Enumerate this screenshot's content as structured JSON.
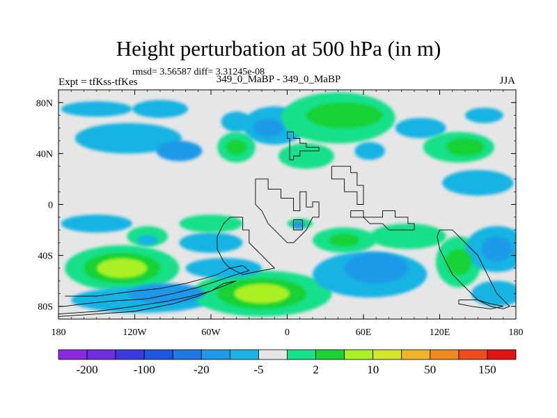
{
  "chart_data": {
    "type": "heatmap",
    "title": "Height perturbation at 500 hPa (in m)",
    "subtitle": "rmsd= 3.56587 diff= 3.31245e-08",
    "left_string": "Expt = tfKss-tfKes",
    "center_string": "349_0_MaBP - 349_0_MaBP",
    "right_string": "JJA",
    "xlim": [
      -180,
      180
    ],
    "ylim": [
      -90,
      90
    ],
    "x_ticks": [
      {
        "value": -180,
        "label": "180"
      },
      {
        "value": -120,
        "label": "120W"
      },
      {
        "value": -60,
        "label": "60W"
      },
      {
        "value": 0,
        "label": "0"
      },
      {
        "value": 60,
        "label": "60E"
      },
      {
        "value": 120,
        "label": "120E"
      },
      {
        "value": 180,
        "label": "180"
      }
    ],
    "y_ticks": [
      {
        "value": 80,
        "label": "80N"
      },
      {
        "value": 40,
        "label": "40N"
      },
      {
        "value": 0,
        "label": "0"
      },
      {
        "value": -40,
        "label": "40S"
      },
      {
        "value": -80,
        "label": "80S"
      }
    ],
    "colorbar": {
      "colors": [
        "#8a2be2",
        "#6f2ee0",
        "#3a3adf",
        "#1f57e0",
        "#1f78e6",
        "#1f9ae8",
        "#19b4e2",
        "#e6e6e6",
        "#19e08a",
        "#19d235",
        "#aaf024",
        "#d2e62a",
        "#f0b428",
        "#f08a1e",
        "#f04a1e",
        "#e01414"
      ],
      "labels": [
        {
          "boundary": 1,
          "label": "-200"
        },
        {
          "boundary": 3,
          "label": "-100"
        },
        {
          "boundary": 5,
          "label": "-20"
        },
        {
          "boundary": 7,
          "label": "-5"
        },
        {
          "boundary": 9,
          "label": "2"
        },
        {
          "boundary": 11,
          "label": "10"
        },
        {
          "boundary": 13,
          "label": "50"
        },
        {
          "boundary": 15,
          "label": "150"
        }
      ]
    },
    "field_regions": [
      {
        "lon": -150,
        "lat": 75,
        "rx": 28,
        "ry": 6,
        "level": 6
      },
      {
        "lon": -100,
        "lat": 75,
        "rx": 22,
        "ry": 7,
        "level": 6
      },
      {
        "lon": -125,
        "lat": 52,
        "rx": 42,
        "ry": 12,
        "level": 6
      },
      {
        "lon": -85,
        "lat": 42,
        "rx": 18,
        "ry": 8,
        "level": 5
      },
      {
        "lon": -40,
        "lat": 65,
        "rx": 12,
        "ry": 8,
        "level": 6
      },
      {
        "lon": -40,
        "lat": 45,
        "rx": 15,
        "ry": 12,
        "level": 8
      },
      {
        "lon": -40,
        "lat": 45,
        "rx": 8,
        "ry": 6,
        "level": 9
      },
      {
        "lon": -10,
        "lat": 62,
        "rx": 25,
        "ry": 15,
        "level": 6
      },
      {
        "lon": -15,
        "lat": 60,
        "rx": 12,
        "ry": 7,
        "level": 5
      },
      {
        "lon": 15,
        "lat": 38,
        "rx": 22,
        "ry": 10,
        "level": 8
      },
      {
        "lon": 40,
        "lat": 68,
        "rx": 45,
        "ry": 20,
        "level": 8
      },
      {
        "lon": 45,
        "lat": 70,
        "rx": 30,
        "ry": 10,
        "level": 9
      },
      {
        "lon": 65,
        "lat": 42,
        "rx": 12,
        "ry": 7,
        "level": 6
      },
      {
        "lon": 105,
        "lat": 60,
        "rx": 20,
        "ry": 8,
        "level": 6
      },
      {
        "lon": 135,
        "lat": 45,
        "rx": 28,
        "ry": 12,
        "level": 8
      },
      {
        "lon": 140,
        "lat": 45,
        "rx": 15,
        "ry": 7,
        "level": 9
      },
      {
        "lon": 150,
        "lat": 17,
        "rx": 28,
        "ry": 10,
        "level": 6
      },
      {
        "lon": 155,
        "lat": 70,
        "rx": 15,
        "ry": 6,
        "level": 6
      },
      {
        "lon": -150,
        "lat": -15,
        "rx": 28,
        "ry": 7,
        "level": 6
      },
      {
        "lon": -110,
        "lat": -25,
        "rx": 16,
        "ry": 8,
        "level": 8
      },
      {
        "lon": -110,
        "lat": -28,
        "rx": 8,
        "ry": 4,
        "level": 6
      },
      {
        "lon": -130,
        "lat": -50,
        "rx": 45,
        "ry": 18,
        "level": 8
      },
      {
        "lon": -130,
        "lat": -50,
        "rx": 30,
        "ry": 12,
        "level": 9
      },
      {
        "lon": -130,
        "lat": -50,
        "rx": 20,
        "ry": 8,
        "level": 10
      },
      {
        "lon": -60,
        "lat": -30,
        "rx": 25,
        "ry": 8,
        "level": 6
      },
      {
        "lon": -60,
        "lat": -15,
        "rx": 25,
        "ry": 7,
        "level": 8
      },
      {
        "lon": -115,
        "lat": -75,
        "rx": 55,
        "ry": 10,
        "level": 6
      },
      {
        "lon": -95,
        "lat": -70,
        "rx": 30,
        "ry": 8,
        "level": 5
      },
      {
        "lon": -20,
        "lat": -70,
        "rx": 55,
        "ry": 18,
        "level": 8
      },
      {
        "lon": -20,
        "lat": -70,
        "rx": 35,
        "ry": 12,
        "level": 9
      },
      {
        "lon": -20,
        "lat": -70,
        "rx": 22,
        "ry": 8,
        "level": 10
      },
      {
        "lon": -50,
        "lat": -50,
        "rx": 30,
        "ry": 8,
        "level": 6
      },
      {
        "lon": 10,
        "lat": -15,
        "rx": 10,
        "ry": 4,
        "level": 8
      },
      {
        "lon": 45,
        "lat": -28,
        "rx": 25,
        "ry": 10,
        "level": 8
      },
      {
        "lon": 45,
        "lat": -28,
        "rx": 12,
        "ry": 5,
        "level": 9
      },
      {
        "lon": 65,
        "lat": -55,
        "rx": 45,
        "ry": 18,
        "level": 6
      },
      {
        "lon": 70,
        "lat": -50,
        "rx": 25,
        "ry": 12,
        "level": 5
      },
      {
        "lon": 95,
        "lat": -25,
        "rx": 30,
        "ry": 10,
        "level": 8
      },
      {
        "lon": 135,
        "lat": -45,
        "rx": 18,
        "ry": 20,
        "level": 8
      },
      {
        "lon": 135,
        "lat": -45,
        "rx": 10,
        "ry": 10,
        "level": 9
      },
      {
        "lon": 165,
        "lat": -35,
        "rx": 25,
        "ry": 18,
        "level": 6
      },
      {
        "lon": 165,
        "lat": -35,
        "rx": 12,
        "ry": 10,
        "level": 5
      },
      {
        "lon": 165,
        "lat": -70,
        "rx": 20,
        "ry": 10,
        "level": 6
      },
      {
        "lon": 9,
        "lat": -16,
        "rx": 5,
        "ry": 3,
        "level": 5
      }
    ],
    "land_outlines": [
      [
        [
          0,
          57
        ],
        [
          5,
          57
        ],
        [
          5,
          52
        ],
        [
          10,
          52
        ],
        [
          10,
          48
        ],
        [
          15,
          48
        ],
        [
          15,
          45
        ],
        [
          25,
          45
        ],
        [
          25,
          42
        ],
        [
          10,
          42
        ],
        [
          10,
          38
        ],
        [
          5,
          38
        ],
        [
          5,
          35
        ],
        [
          2,
          35
        ],
        [
          2,
          52
        ],
        [
          0,
          52
        ],
        [
          0,
          57
        ]
      ],
      [
        [
          35,
          30
        ],
        [
          50,
          30
        ],
        [
          50,
          25
        ],
        [
          55,
          25
        ],
        [
          55,
          15
        ],
        [
          60,
          15
        ],
        [
          60,
          0
        ],
        [
          55,
          0
        ],
        [
          55,
          10
        ],
        [
          45,
          10
        ],
        [
          45,
          20
        ],
        [
          35,
          20
        ],
        [
          35,
          30
        ]
      ],
      [
        [
          -25,
          20
        ],
        [
          -15,
          20
        ],
        [
          -15,
          12
        ],
        [
          -5,
          12
        ],
        [
          -5,
          5
        ],
        [
          0,
          5
        ],
        [
          5,
          5
        ],
        [
          5,
          -5
        ],
        [
          10,
          -5
        ],
        [
          10,
          10
        ],
        [
          15,
          10
        ],
        [
          15,
          -2
        ],
        [
          20,
          -2
        ],
        [
          20,
          2
        ],
        [
          25,
          2
        ],
        [
          25,
          -10
        ],
        [
          20,
          -10
        ],
        [
          15,
          -20
        ],
        [
          10,
          -25
        ],
        [
          5,
          -30
        ],
        [
          0,
          -30
        ],
        [
          -5,
          -25
        ],
        [
          -10,
          -20
        ],
        [
          -15,
          -15
        ],
        [
          -20,
          -5
        ],
        [
          -25,
          0
        ],
        [
          -25,
          20
        ]
      ],
      [
        [
          -40,
          -10
        ],
        [
          -35,
          -10
        ],
        [
          -35,
          -20
        ],
        [
          -30,
          -20
        ],
        [
          -30,
          -30
        ],
        [
          -25,
          -35
        ],
        [
          -20,
          -40
        ],
        [
          -15,
          -45
        ],
        [
          -10,
          -50
        ],
        [
          -20,
          -52
        ],
        [
          -35,
          -55
        ],
        [
          -45,
          -50
        ],
        [
          -50,
          -45
        ],
        [
          -55,
          -35
        ],
        [
          -55,
          -25
        ],
        [
          -50,
          -15
        ],
        [
          -45,
          -10
        ],
        [
          -40,
          -10
        ]
      ],
      [
        [
          50,
          -5
        ],
        [
          60,
          -5
        ],
        [
          60,
          -10
        ],
        [
          75,
          -10
        ],
        [
          75,
          -5
        ],
        [
          85,
          -5
        ],
        [
          85,
          -10
        ],
        [
          95,
          -10
        ],
        [
          95,
          -15
        ],
        [
          100,
          -15
        ],
        [
          100,
          -20
        ],
        [
          80,
          -20
        ],
        [
          75,
          -15
        ],
        [
          65,
          -15
        ],
        [
          60,
          -10
        ],
        [
          50,
          -10
        ],
        [
          50,
          -5
        ]
      ],
      [
        [
          120,
          -20
        ],
        [
          130,
          -20
        ],
        [
          135,
          -25
        ],
        [
          140,
          -30
        ],
        [
          145,
          -35
        ],
        [
          150,
          -40
        ],
        [
          155,
          -50
        ],
        [
          160,
          -60
        ],
        [
          165,
          -70
        ],
        [
          170,
          -75
        ],
        [
          175,
          -80
        ],
        [
          170,
          -82
        ],
        [
          160,
          -80
        ],
        [
          150,
          -75
        ],
        [
          140,
          -65
        ],
        [
          130,
          -55
        ],
        [
          125,
          -45
        ],
        [
          120,
          -35
        ],
        [
          118,
          -25
        ],
        [
          120,
          -20
        ]
      ],
      [
        [
          -175,
          -72
        ],
        [
          -150,
          -72
        ],
        [
          -120,
          -68
        ],
        [
          -100,
          -66
        ],
        [
          -80,
          -62
        ],
        [
          -65,
          -58
        ],
        [
          -55,
          -55
        ],
        [
          -45,
          -50
        ],
        [
          -35,
          -48
        ],
        [
          -30,
          -52
        ],
        [
          -40,
          -55
        ],
        [
          -55,
          -60
        ],
        [
          -70,
          -65
        ],
        [
          -90,
          -70
        ],
        [
          -110,
          -74
        ],
        [
          -140,
          -76
        ],
        [
          -160,
          -78
        ],
        [
          -175,
          -80
        ],
        [
          -180,
          -80
        ]
      ],
      [
        [
          -180,
          -86
        ],
        [
          -150,
          -84
        ],
        [
          -120,
          -80
        ],
        [
          -95,
          -76
        ],
        [
          -75,
          -72
        ],
        [
          -60,
          -68
        ],
        [
          -50,
          -62
        ],
        [
          -40,
          -60
        ],
        [
          -55,
          -66
        ],
        [
          -70,
          -72
        ],
        [
          -90,
          -78
        ],
        [
          -120,
          -84
        ],
        [
          -150,
          -86
        ],
        [
          -180,
          -88
        ]
      ],
      [
        [
          135,
          -75
        ],
        [
          150,
          -75
        ],
        [
          160,
          -78
        ],
        [
          170,
          -80
        ],
        [
          160,
          -82
        ],
        [
          145,
          -80
        ],
        [
          135,
          -78
        ],
        [
          135,
          -75
        ]
      ],
      [
        [
          5,
          -12
        ],
        [
          12,
          -12
        ],
        [
          12,
          -20
        ],
        [
          5,
          -20
        ],
        [
          5,
          -12
        ]
      ]
    ]
  }
}
